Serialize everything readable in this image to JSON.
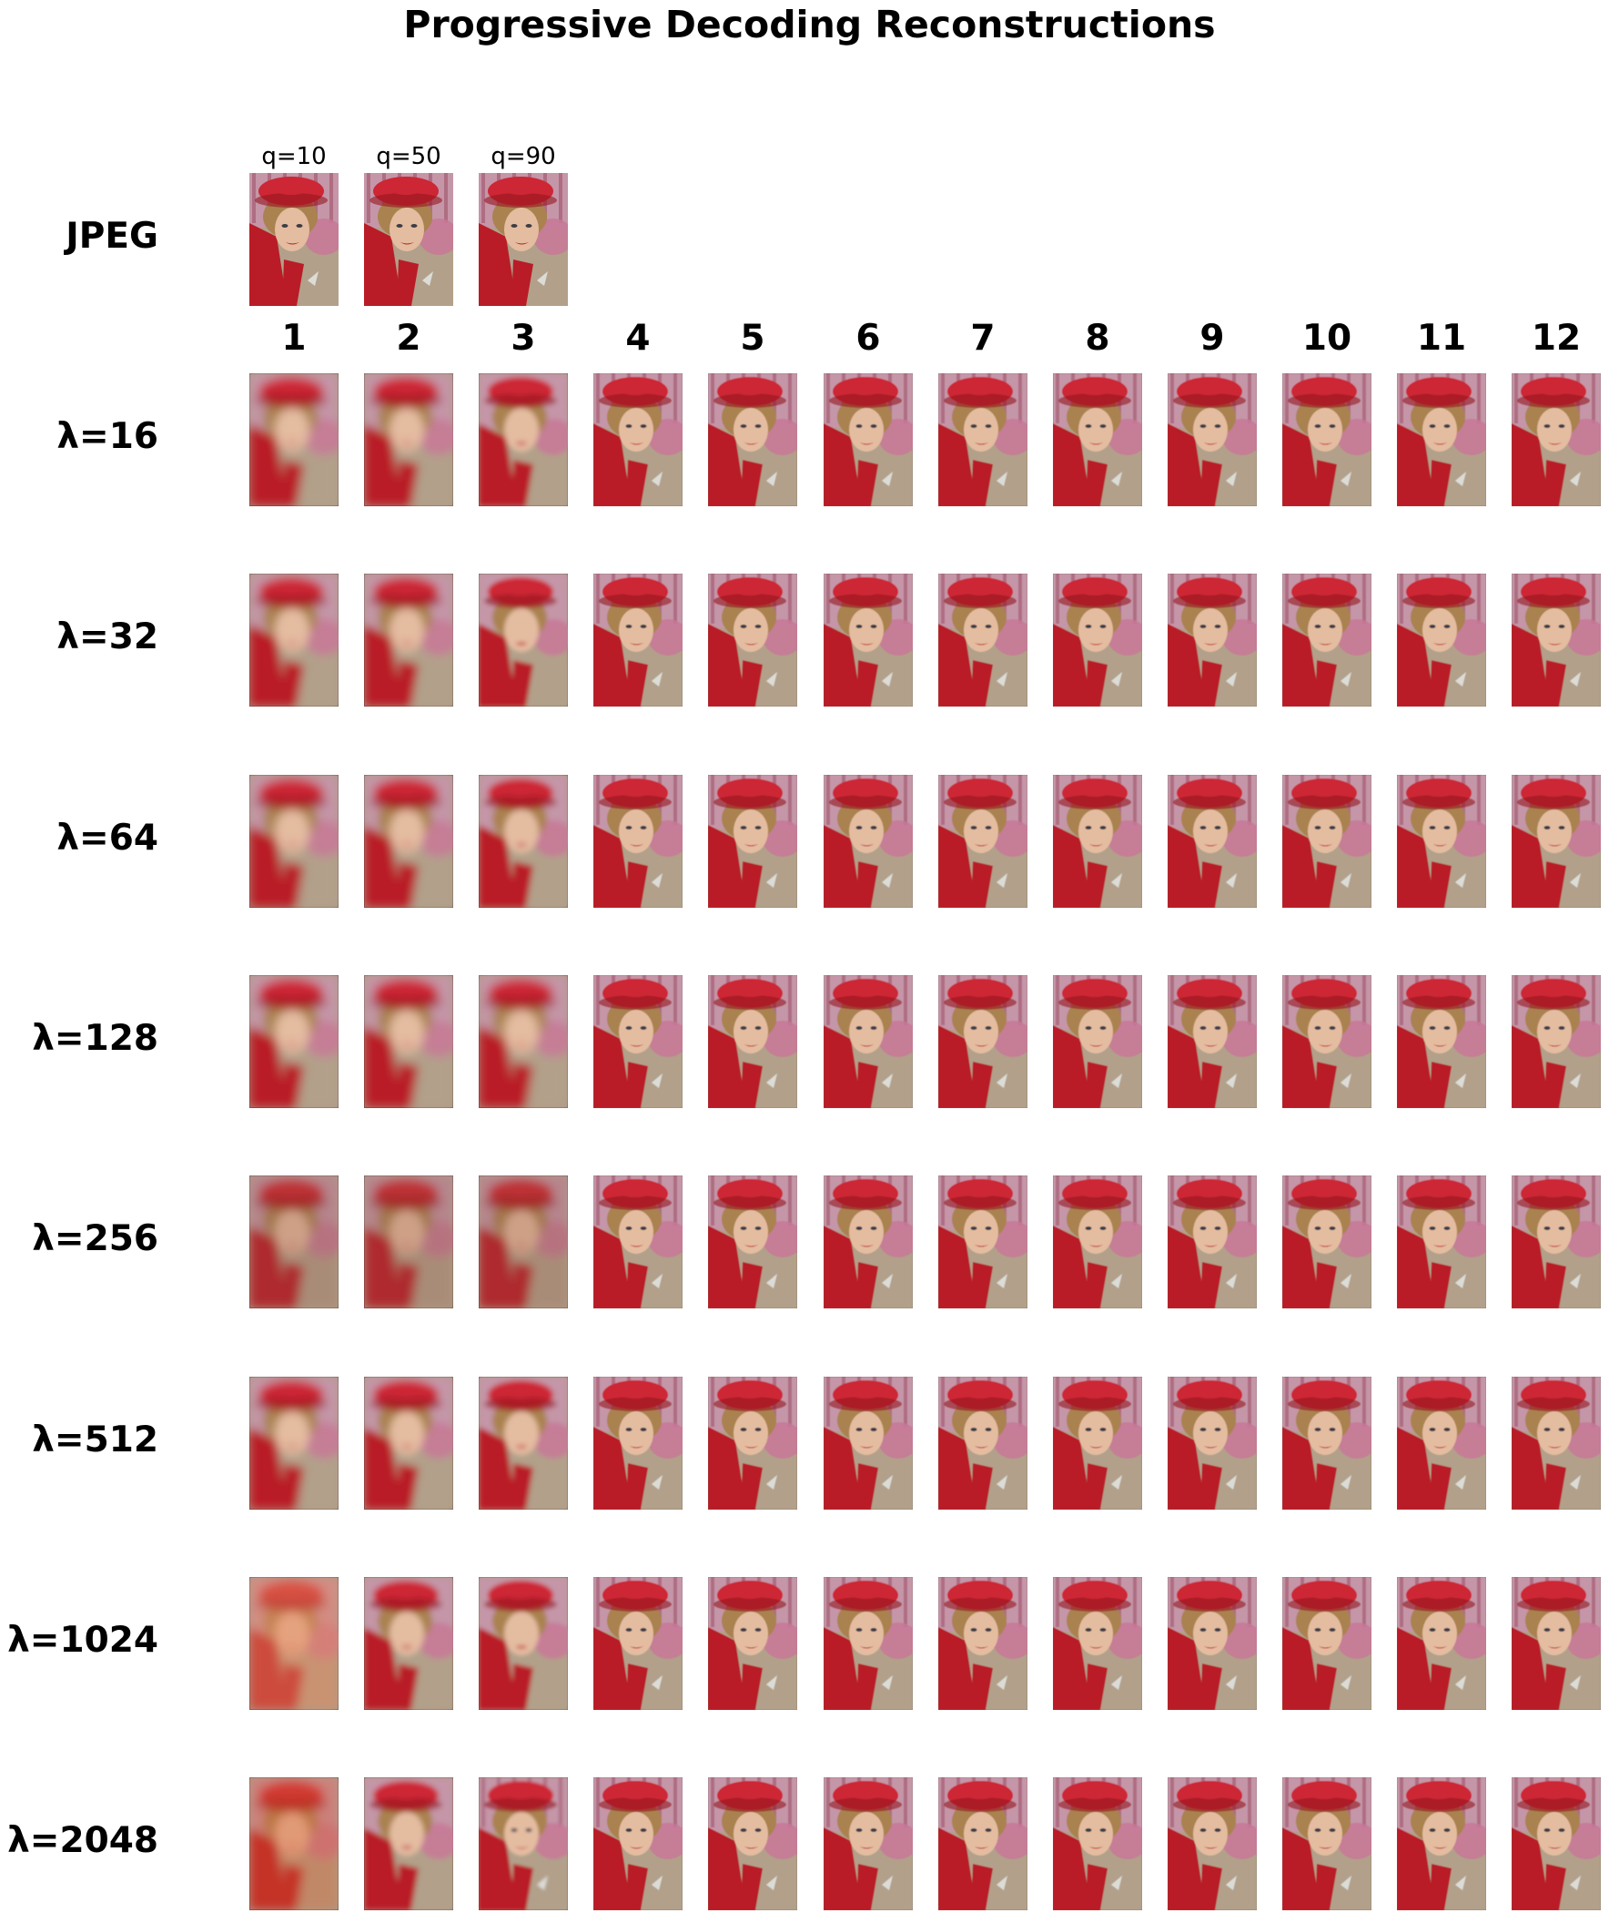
{
  "title": "Progressive Decoding Reconstructions",
  "jpeg_row": {
    "label": "JPEG",
    "qualities": [
      "q=10",
      "q=50",
      "q=90"
    ]
  },
  "columns": [
    "1",
    "2",
    "3",
    "4",
    "5",
    "6",
    "7",
    "8",
    "9",
    "10",
    "11",
    "12"
  ],
  "rows": [
    {
      "label": "λ=16"
    },
    {
      "label": "λ=32"
    },
    {
      "label": "λ=64"
    },
    {
      "label": "λ=128"
    },
    {
      "label": "λ=256"
    },
    {
      "label": "λ=512"
    },
    {
      "label": "λ=1024"
    },
    {
      "label": "λ=2048"
    }
  ]
}
